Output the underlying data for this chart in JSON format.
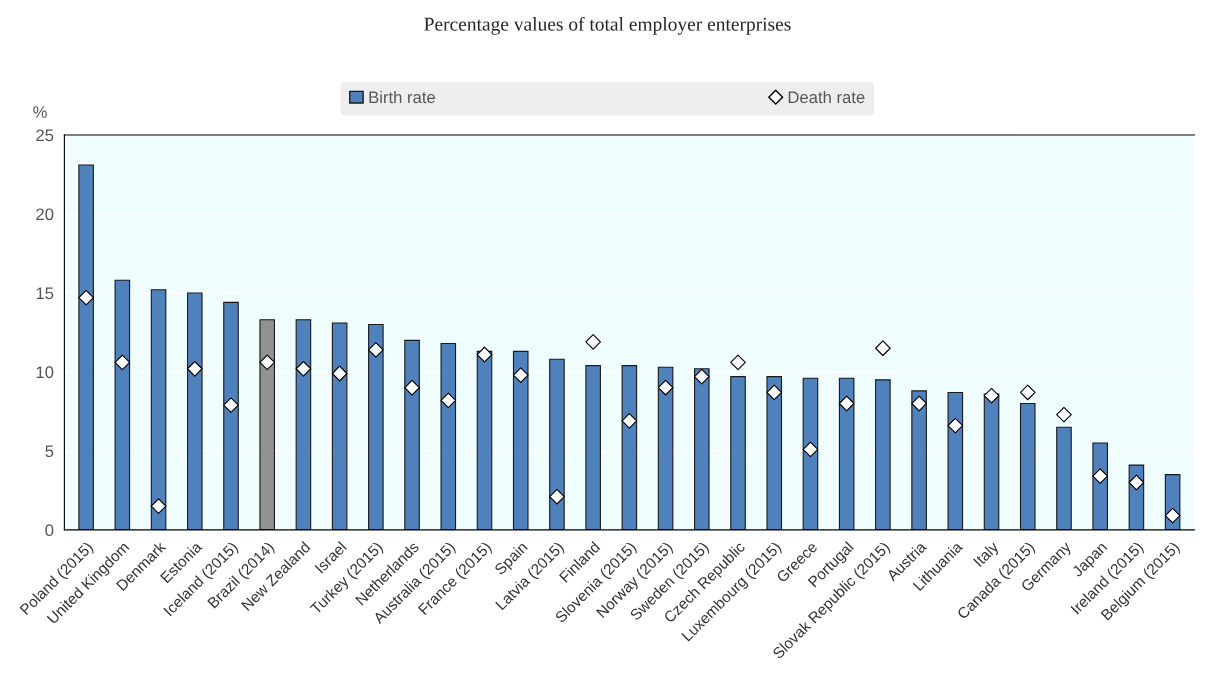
{
  "chart_data": {
    "type": "bar",
    "title": "Percentage values of total employer enterprises",
    "ylabel": "%",
    "categories": [
      "Poland (2015)",
      "United Kingdom",
      "Denmark",
      "Estonia",
      "Iceland (2015)",
      "Brazil (2014)",
      "New Zealand",
      "Israel",
      "Turkey (2015)",
      "Netherlands",
      "Australia (2015)",
      "France (2015)",
      "Spain",
      "Latvia (2015)",
      "Finland",
      "Slovenia (2015)",
      "Norway (2015)",
      "Sweden (2015)",
      "Czech Republic",
      "Luxembourg (2015)",
      "Greece",
      "Portugal",
      "Slovak Republic (2015)",
      "Austria",
      "Lithuania",
      "Italy",
      "Canada (2015)",
      "Germany",
      "Japan",
      "Ireland (2015)",
      "Belgium (2015)"
    ],
    "series": [
      {
        "name": "Birth rate",
        "color": "#4f81bd",
        "colors": [
          "#4f81bd",
          "#4f81bd",
          "#4f81bd",
          "#4f81bd",
          "#4f81bd",
          "#929292",
          "#4f81bd",
          "#4f81bd",
          "#4f81bd",
          "#4f81bd",
          "#4f81bd",
          "#4f81bd",
          "#4f81bd",
          "#4f81bd",
          "#4f81bd",
          "#4f81bd",
          "#4f81bd",
          "#4f81bd",
          "#4f81bd",
          "#4f81bd",
          "#4f81bd",
          "#4f81bd",
          "#4f81bd",
          "#4f81bd",
          "#4f81bd",
          "#4f81bd",
          "#4f81bd",
          "#4f81bd",
          "#4f81bd",
          "#4f81bd",
          "#4f81bd"
        ],
        "values": [
          23.1,
          15.8,
          15.2,
          15.0,
          14.4,
          13.3,
          13.3,
          13.1,
          13.0,
          12.0,
          11.8,
          11.3,
          11.3,
          10.8,
          10.4,
          10.4,
          10.3,
          10.2,
          9.7,
          9.7,
          9.6,
          9.6,
          9.5,
          8.8,
          8.7,
          8.6,
          8.0,
          6.5,
          5.5,
          4.1,
          3.5
        ]
      },
      {
        "name": "Death rate",
        "type": "scatter",
        "marker": "diamond",
        "color": "#ffffff",
        "values": [
          14.7,
          10.6,
          1.5,
          10.2,
          7.9,
          10.6,
          10.2,
          9.9,
          11.4,
          9.0,
          8.2,
          11.1,
          9.8,
          2.1,
          11.9,
          6.9,
          9.0,
          9.7,
          10.6,
          8.7,
          5.1,
          8.0,
          11.5,
          8.0,
          6.6,
          8.5,
          8.7,
          7.3,
          3.4,
          3.0,
          0.9
        ]
      }
    ],
    "ylim": [
      0,
      25
    ],
    "yticks": [
      0,
      5,
      10,
      15,
      20,
      25
    ],
    "grid": "y",
    "legend": "top"
  }
}
